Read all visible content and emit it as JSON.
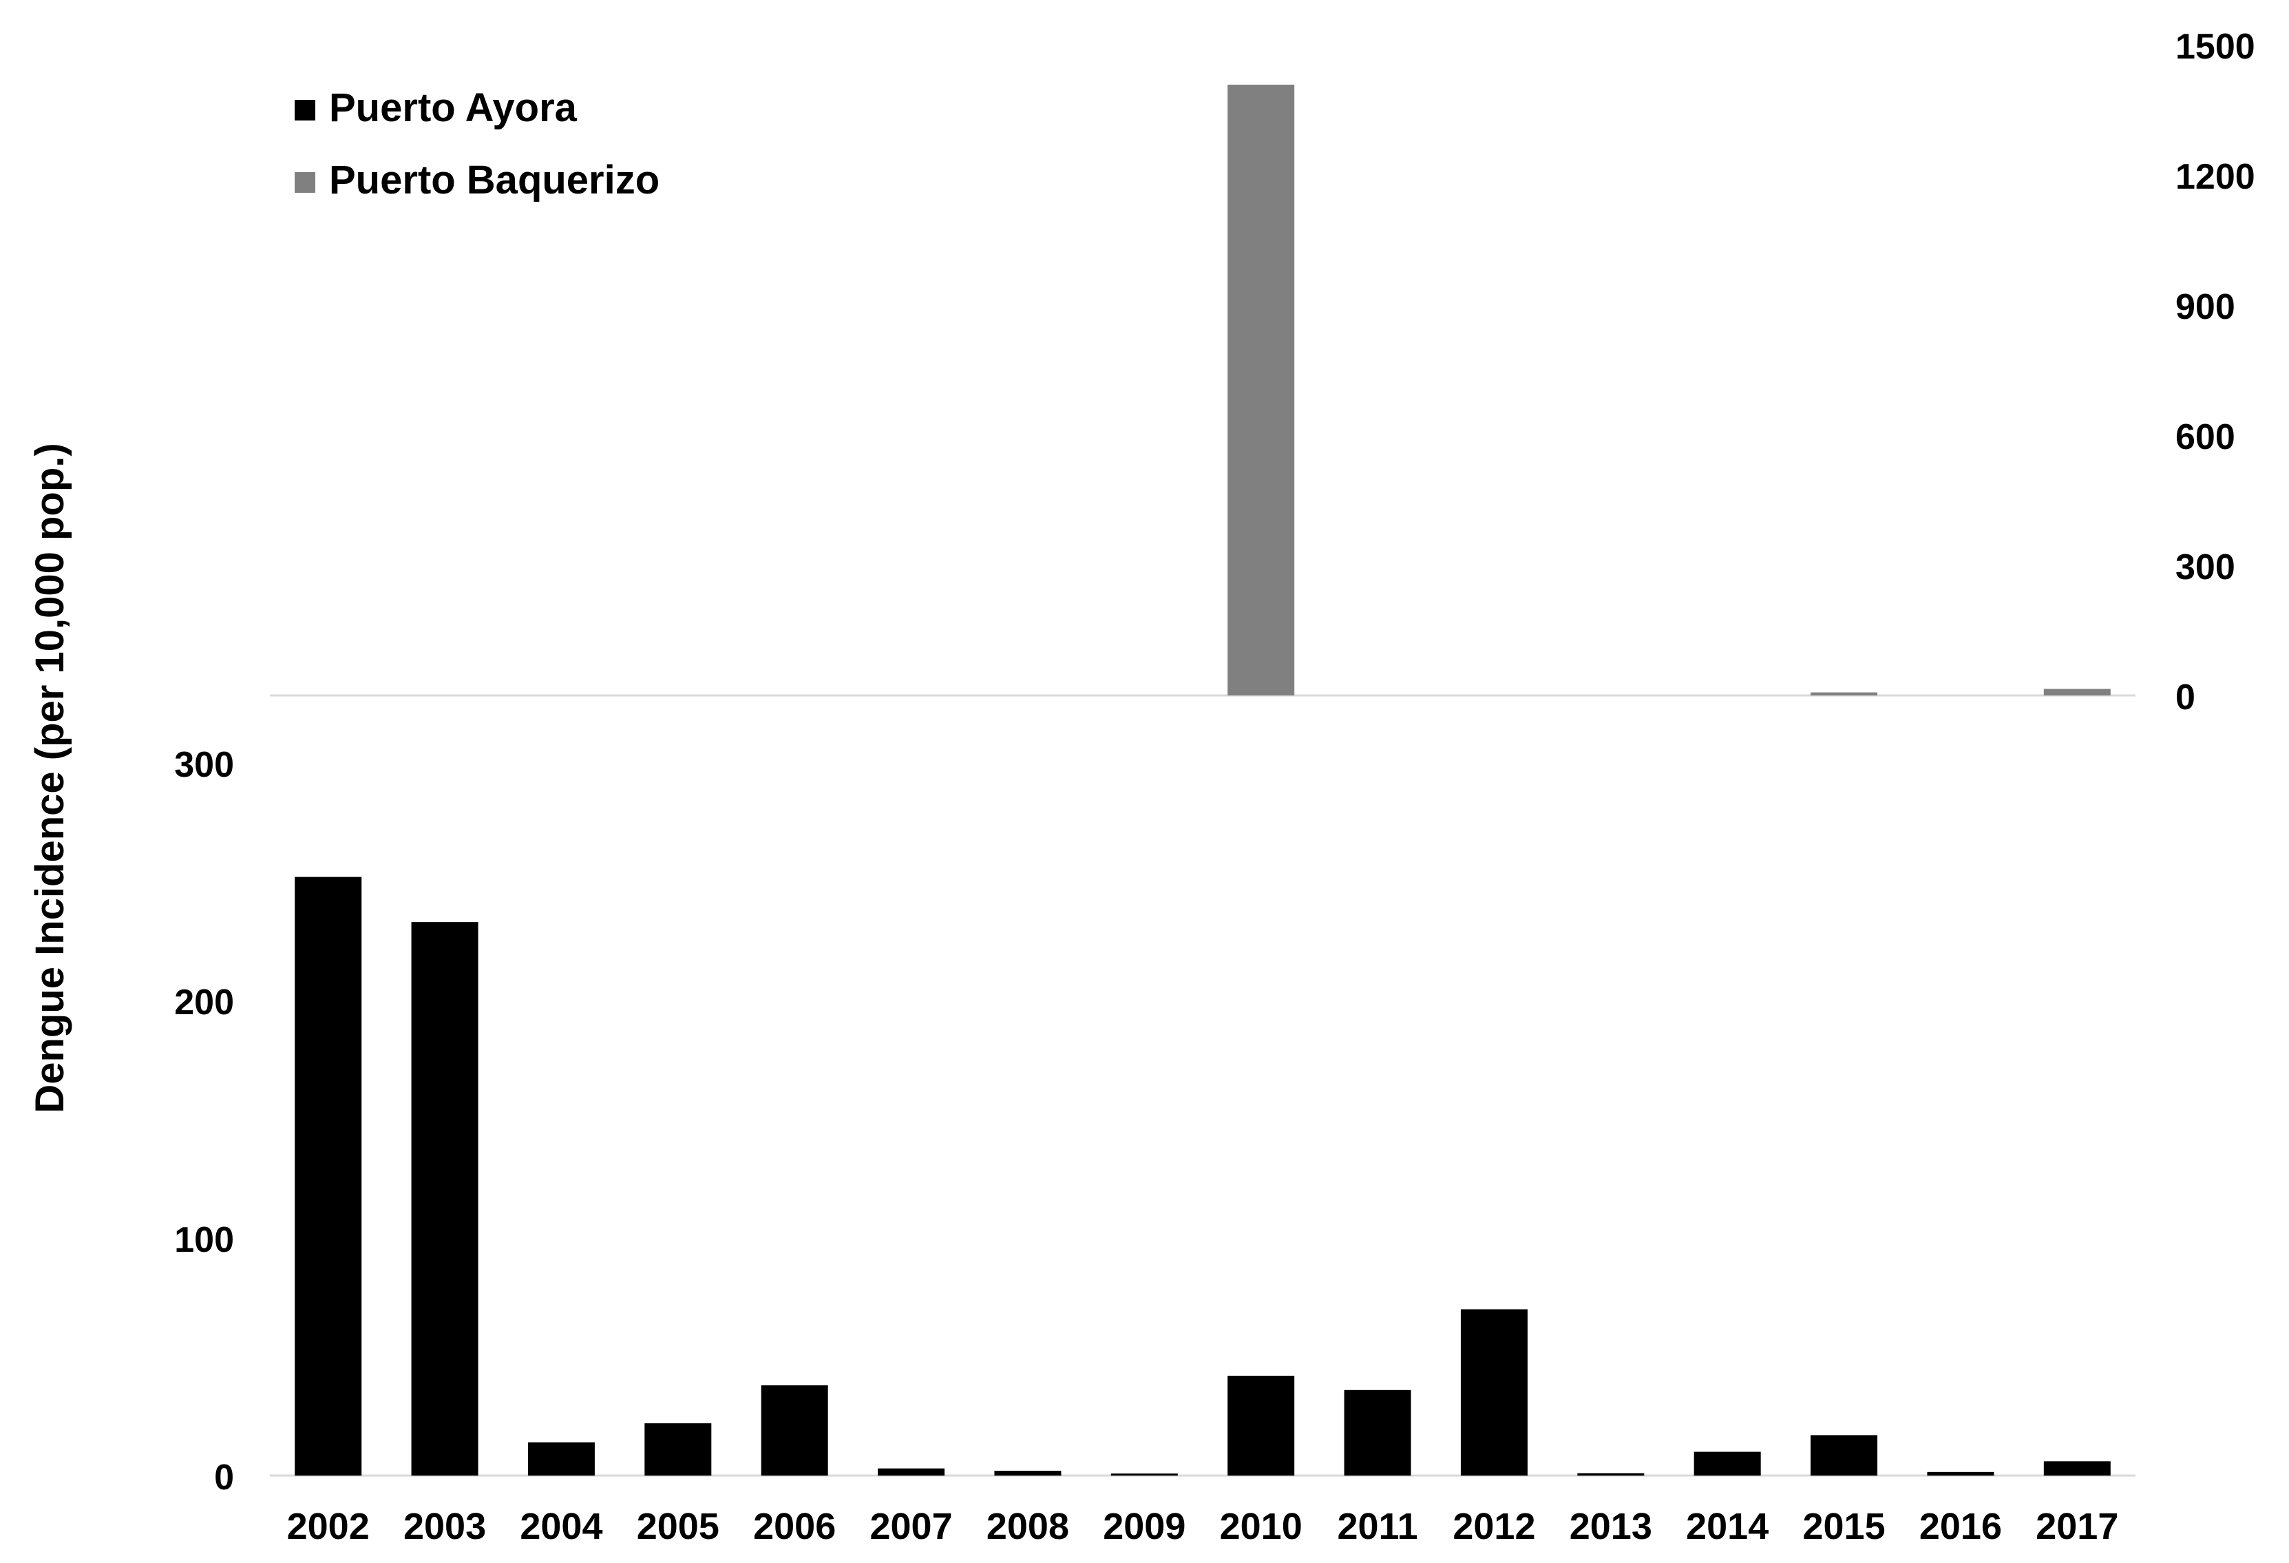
{
  "chart_data": [
    {
      "type": "bar",
      "panel": "top",
      "title": "",
      "xlabel": "",
      "ylabel": "Dengue Incidence (per 10,000 pop.)",
      "y_axis_side": "right",
      "ylim": [
        0,
        1500
      ],
      "y_ticks": [
        "0",
        "300",
        "600",
        "900",
        "1200",
        "1500"
      ],
      "categories": [
        "2002",
        "2003",
        "2004",
        "2005",
        "2006",
        "2007",
        "2008",
        "2009",
        "2010",
        "2011",
        "2012",
        "2013",
        "2014",
        "2015",
        "2016",
        "2017"
      ],
      "series": [
        {
          "name": "Puerto Baquerizo",
          "color": "#808080",
          "values": [
            0,
            0,
            0,
            0,
            0,
            0,
            0,
            0,
            1408,
            0,
            0,
            0,
            0,
            7,
            0,
            15
          ]
        }
      ],
      "grid": false,
      "legend": "top-left"
    },
    {
      "type": "bar",
      "panel": "bottom",
      "title": "",
      "xlabel": "",
      "ylabel": "Dengue Incidence (per 10,000 pop.)",
      "y_axis_side": "left",
      "ylim": [
        0,
        300
      ],
      "y_ticks": [
        "0",
        "100",
        "200",
        "300"
      ],
      "categories": [
        "2002",
        "2003",
        "2004",
        "2005",
        "2006",
        "2007",
        "2008",
        "2009",
        "2010",
        "2011",
        "2012",
        "2013",
        "2014",
        "2015",
        "2016",
        "2017"
      ],
      "series": [
        {
          "name": "Puerto Ayora",
          "color": "#000000",
          "values": [
            252,
            233,
            14,
            22,
            38,
            3,
            2,
            0.5,
            42,
            36,
            70,
            1,
            10,
            17,
            1.5,
            6
          ]
        }
      ],
      "grid": false,
      "legend": "top-left"
    }
  ],
  "legend": {
    "items": [
      {
        "label": "Puerto Ayora",
        "color": "#000000"
      },
      {
        "label": "Puerto Baquerizo",
        "color": "#808080"
      }
    ]
  }
}
